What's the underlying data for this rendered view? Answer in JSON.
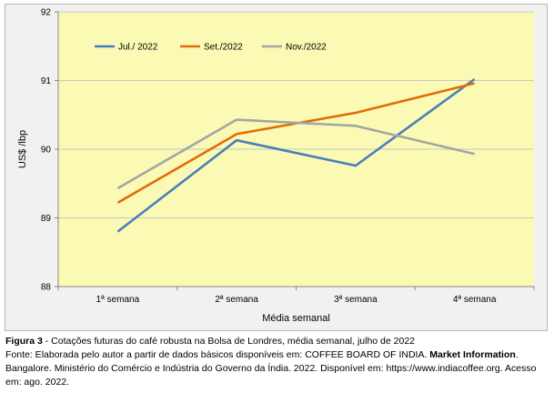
{
  "chart_data": {
    "type": "line",
    "categories": [
      "1ª semana",
      "2ª semana",
      "3ª semana",
      "4ª semana"
    ],
    "series": [
      {
        "name": "Jul./ 2022",
        "values": [
          88.8,
          90.13,
          89.76,
          91.02
        ],
        "color": "#4a7ebb"
      },
      {
        "name": "Set./2022",
        "values": [
          89.22,
          90.22,
          90.53,
          90.96
        ],
        "color": "#e36c09"
      },
      {
        "name": "Nov./2022",
        "values": [
          89.43,
          90.43,
          90.34,
          89.93
        ],
        "color": "#a5a5a5"
      }
    ],
    "xlabel": "Média semanal",
    "ylabel": "US$ /lbp",
    "ylim": [
      88,
      92
    ],
    "yticks": [
      "88",
      "89",
      "90",
      "91",
      "92"
    ],
    "plot_background": "#fafab4",
    "grid": true,
    "legend_position": "top-left"
  },
  "caption": {
    "figure_label": "Figura 3",
    "figure_text": " - Cotações futuras do café robusta na Bolsa de Londres, média semanal, julho de 2022",
    "source_pre": "Fonte: Elaborada pelo autor a partir de dados básicos disponíveis em: COFFEE BOARD OF INDIA. ",
    "source_strong": "Market Information",
    "source_post": ". Bangalore. Ministério do Comércio e Indústria do Governo da Índia. 2022. Disponível em: https://www.indiacoffee.org. Acesso em: ago. 2022."
  }
}
